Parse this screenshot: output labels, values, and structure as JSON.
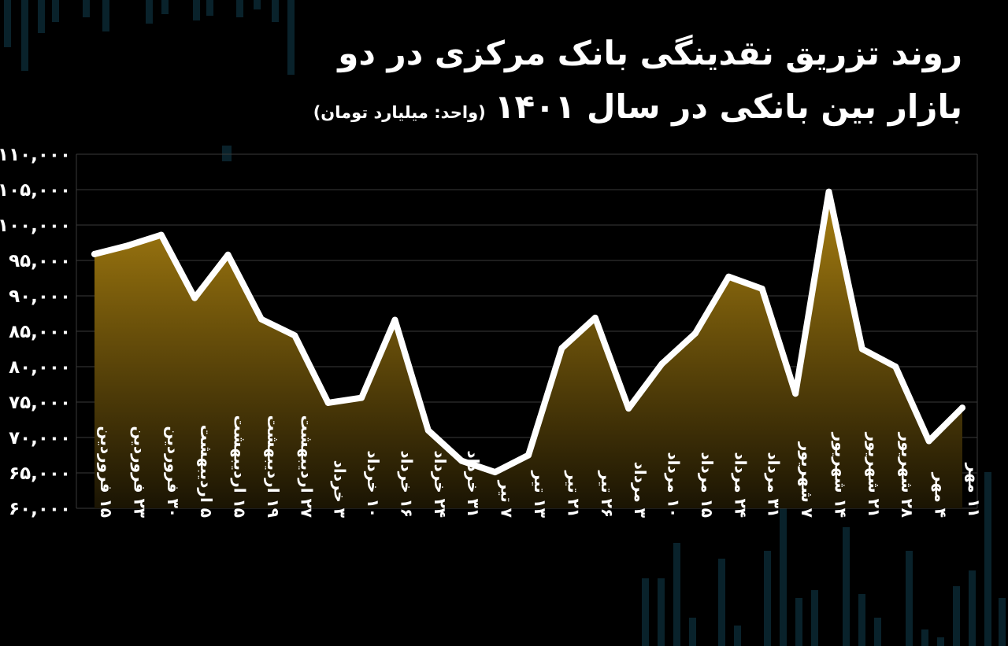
{
  "title": {
    "line1": "روند تزریق نقدینگی بانک مرکزی در دو",
    "line2": "بازار بین بانکی در سال ۱۴۰۱",
    "unit": "(واحد: میلیارد تومان)"
  },
  "colors": {
    "background": "#000000",
    "line": "#ffffff",
    "area_top": "#a87f10",
    "area_bottom": "#1a1403",
    "grid": "#3a3a3a"
  },
  "chart_data": {
    "type": "area",
    "title": "روند تزریق نقدینگی بانک مرکزی در دو بازار بین بانکی در سال ۱۴۰۱",
    "ylabel": "(واحد: میلیارد تومان)",
    "xlabel": "",
    "ylim": [
      60000,
      110000
    ],
    "yticks": [
      60000,
      65000,
      70000,
      75000,
      80000,
      85000,
      90000,
      95000,
      100000,
      105000,
      110000
    ],
    "ytick_labels": [
      "۶۰,۰۰۰",
      "۶۵,۰۰۰",
      "۷۰,۰۰۰",
      "۷۵,۰۰۰",
      "۸۰,۰۰۰",
      "۸۵,۰۰۰",
      "۹۰,۰۰۰",
      "۹۵,۰۰۰",
      "۱۰۰,۰۰۰",
      "۱۰۵,۰۰۰",
      "۱۱۰,۰۰۰"
    ],
    "grid": true,
    "categories": [
      "۱۵ فروردین",
      "۲۳ فروردین",
      "۳۰ فروردین",
      "۵ اردیبهشت",
      "۱۵ اردیبهشت",
      "۱۹ اردیبهشت",
      "۲۷ اردیبهشت",
      "۳ خرداد",
      "۱۰ خرداد",
      "۱۶ خرداد",
      "۲۴ خرداد",
      "۳۱ خرداد",
      "۷ تیر",
      "۱۳ تیر",
      "۲۱ تیر",
      "۲۶ تیر",
      "۳ مرداد",
      "۱۰ مرداد",
      "۱۵ مرداد",
      "۲۴ مرداد",
      "۳۱ مرداد",
      "۷ شهریور",
      "۱۴ شهریور",
      "۲۱ شهریور",
      "۲۸ شهریور",
      "۴ مهر",
      "۱۱ مهر"
    ],
    "series": [
      {
        "values": [
          95900,
          97100,
          98600,
          89700,
          95800,
          86700,
          84400,
          74900,
          75600,
          86600,
          71000,
          66700,
          65100,
          67500,
          82600,
          86900,
          74100,
          80400,
          84700,
          92700,
          91000,
          76200,
          104700,
          82500,
          80000,
          69500,
          74200
        ]
      }
    ]
  }
}
